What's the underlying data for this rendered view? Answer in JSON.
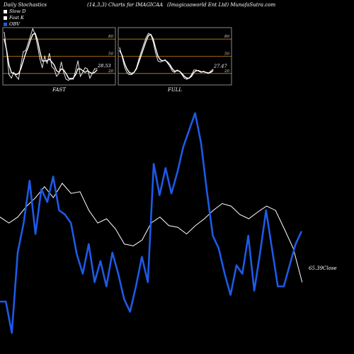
{
  "header": {
    "title": "Daily Stochastics",
    "params": "(14,3,3) Charts for IMAGICAA",
    "company": "(Imagicaaworld Ent Ltd) MunafaSutra.com"
  },
  "legend": {
    "items": [
      {
        "label": "Slow  D",
        "color": "#ffffff"
      },
      {
        "label": "Fast K",
        "color": "#ffffff"
      },
      {
        "label": "OBV",
        "color": "#1d5ae6"
      }
    ]
  },
  "chart_data": [
    {
      "type": "line",
      "panel_label": "FAST",
      "ylim": [
        0,
        100
      ],
      "levels": [
        80,
        50,
        20
      ],
      "level_labels": [
        "80",
        "50",
        "20"
      ],
      "last_value_label": "28.53",
      "series": [
        {
          "values": [
            92,
            58,
            18,
            12,
            22,
            15,
            10,
            35,
            58,
            60,
            72,
            85,
            98,
            88,
            68,
            45,
            30,
            50,
            38,
            55,
            32,
            28,
            15,
            20,
            40,
            22,
            10,
            8,
            12,
            10,
            25,
            42,
            15,
            22,
            30,
            28,
            12,
            20,
            28,
            28.53
          ]
        },
        {
          "values": [
            80,
            60,
            35,
            22,
            20,
            18,
            20,
            28,
            42,
            55,
            65,
            78,
            88,
            90,
            78,
            58,
            42,
            42,
            42,
            45,
            40,
            35,
            25,
            22,
            28,
            26,
            20,
            12,
            10,
            12,
            18,
            28,
            28,
            25,
            22,
            25,
            22,
            20,
            22,
            26
          ]
        }
      ]
    },
    {
      "type": "line",
      "panel_label": "FULL",
      "ylim": [
        0,
        100
      ],
      "levels": [
        80,
        50,
        20
      ],
      "level_labels": [
        "80",
        "50",
        "20"
      ],
      "last_value_label": "27.47",
      "series": [
        {
          "values": [
            65,
            50,
            32,
            22,
            18,
            18,
            22,
            30,
            45,
            58,
            70,
            82,
            90,
            88,
            75,
            56,
            42,
            40,
            42,
            44,
            38,
            32,
            24,
            22,
            26,
            24,
            18,
            12,
            10,
            12,
            18,
            26,
            26,
            24,
            22,
            24,
            22,
            20,
            24,
            27.47
          ]
        },
        {
          "values": [
            60,
            52,
            38,
            28,
            22,
            20,
            22,
            28,
            40,
            52,
            64,
            76,
            86,
            88,
            80,
            64,
            50,
            44,
            42,
            43,
            40,
            35,
            28,
            24,
            25,
            24,
            20,
            15,
            12,
            12,
            15,
            22,
            25,
            25,
            23,
            23,
            22,
            21,
            22,
            25
          ]
        }
      ]
    },
    {
      "type": "line",
      "close_label": "65.39Close",
      "series": [
        {
          "name": "OBV",
          "values": [
            -398,
            -398,
            -435,
            -340,
            -305,
            -255,
            -318,
            -265,
            -280,
            -250,
            -290,
            -295,
            -305,
            -342,
            -365,
            -330,
            -375,
            -350,
            -380,
            -340,
            -365,
            -395,
            -410,
            -380,
            -345,
            -375,
            -235,
            -272,
            -240,
            -270,
            -245,
            -215,
            -195,
            -175,
            -210,
            -268,
            -320,
            -335,
            -365,
            -390,
            -355,
            -365,
            -320,
            -385,
            -340,
            -290,
            -335,
            -380,
            -380,
            -355,
            -330,
            -315
          ]
        },
        {
          "values": [
            -298,
            -305,
            -298,
            -285,
            -275,
            -262,
            -275,
            -258,
            -270,
            -268,
            -290,
            -305,
            -300,
            -312,
            -330,
            -332,
            -325,
            -305,
            -298,
            -308,
            -310,
            -318,
            -308,
            -300,
            -290,
            -282,
            -285,
            -295,
            -300,
            -292,
            -285,
            -290,
            -312,
            -335,
            -375
          ]
        }
      ]
    }
  ]
}
